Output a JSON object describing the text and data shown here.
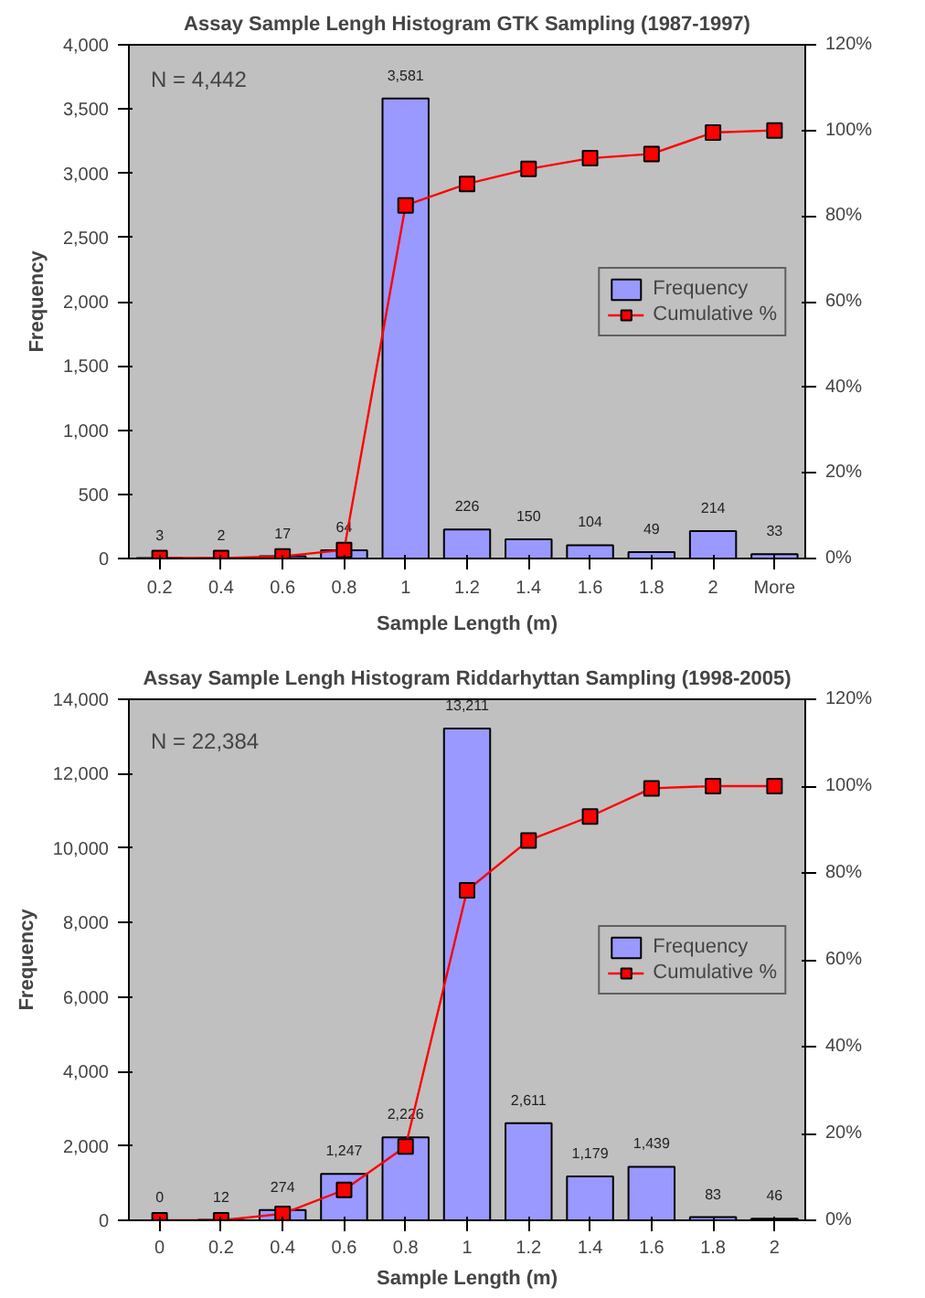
{
  "chart_data": [
    {
      "type": "bar",
      "title": "Assay Sample Lengh Histogram GTK Sampling (1987-1997)",
      "xlabel": "Sample Length (m)",
      "ylabel": "Frequency",
      "categories": [
        "0.2",
        "0.4",
        "0.6",
        "0.8",
        "1",
        "1.2",
        "1.4",
        "1.6",
        "1.8",
        "2",
        "More"
      ],
      "series": [
        {
          "name": "Frequency",
          "color": "#9999ff",
          "values": [
            3,
            2,
            17,
            64,
            3581,
            226,
            150,
            104,
            49,
            214,
            33
          ],
          "value_labels": [
            "3",
            "2",
            "17",
            "64",
            "3,581",
            "226",
            "150",
            "104",
            "49",
            "214",
            "33"
          ]
        },
        {
          "name": "Cumulative %",
          "type": "line",
          "axis": "y2",
          "color": "#ff0000",
          "marker": "square",
          "values": [
            0.1,
            0.1,
            0.5,
            2,
            82.5,
            87.5,
            91,
            93.5,
            94.5,
            99.5,
            100
          ]
        }
      ],
      "annotations": [
        "N = 4,442"
      ],
      "ylim": [
        0,
        4000
      ],
      "yticks": [
        {
          "value": 0,
          "label": "0"
        },
        {
          "value": 500,
          "label": "500"
        },
        {
          "value": 1000,
          "label": "1,000"
        },
        {
          "value": 1500,
          "label": "1,500"
        },
        {
          "value": 2000,
          "label": "2,000"
        },
        {
          "value": 2500,
          "label": "2,500"
        },
        {
          "value": 3000,
          "label": "3,000"
        },
        {
          "value": 3500,
          "label": "3,500"
        },
        {
          "value": 4000,
          "label": "4,000"
        }
      ],
      "y2lim": [
        0,
        120
      ],
      "y2ticks": [
        {
          "value": 0,
          "label": "0%"
        },
        {
          "value": 20,
          "label": "20%"
        },
        {
          "value": 40,
          "label": "40%"
        },
        {
          "value": 60,
          "label": "60%"
        },
        {
          "value": 80,
          "label": "80%"
        },
        {
          "value": 100,
          "label": "100%"
        },
        {
          "value": 120,
          "label": "120%"
        }
      ],
      "legend": "right",
      "grid": false
    },
    {
      "type": "bar",
      "title": "Assay Sample Lengh Histogram Riddarhyttan Sampling (1998-2005)",
      "xlabel": "Sample Length (m)",
      "ylabel": "Frequency",
      "categories": [
        "0",
        "0.2",
        "0.4",
        "0.6",
        "0.8",
        "1",
        "1.2",
        "1.4",
        "1.6",
        "1.8",
        "2"
      ],
      "series": [
        {
          "name": "Frequency",
          "color": "#9999ff",
          "values": [
            0,
            12,
            274,
            1247,
            2226,
            13211,
            2611,
            1179,
            1439,
            83,
            46
          ],
          "value_labels": [
            "0",
            "12",
            "274",
            "1,247",
            "2,226",
            "13,211",
            "2,611",
            "1,179",
            "1,439",
            "83",
            "46"
          ]
        },
        {
          "name": "Cumulative %",
          "type": "line",
          "axis": "y2",
          "color": "#ff0000",
          "marker": "square",
          "values": [
            0,
            0,
            1.5,
            7,
            17,
            76,
            87.5,
            93,
            99.5,
            100,
            100
          ]
        }
      ],
      "annotations": [
        "N = 22,384"
      ],
      "ylim": [
        0,
        14000
      ],
      "yticks": [
        {
          "value": 0,
          "label": "0"
        },
        {
          "value": 2000,
          "label": "2,000"
        },
        {
          "value": 4000,
          "label": "4,000"
        },
        {
          "value": 6000,
          "label": "6,000"
        },
        {
          "value": 8000,
          "label": "8,000"
        },
        {
          "value": 10000,
          "label": "10,000"
        },
        {
          "value": 12000,
          "label": "12,000"
        },
        {
          "value": 14000,
          "label": "14,000"
        }
      ],
      "y2lim": [
        0,
        120
      ],
      "y2ticks": [
        {
          "value": 0,
          "label": "0%"
        },
        {
          "value": 20,
          "label": "20%"
        },
        {
          "value": 40,
          "label": "40%"
        },
        {
          "value": 60,
          "label": "60%"
        },
        {
          "value": 80,
          "label": "80%"
        },
        {
          "value": 100,
          "label": "100%"
        },
        {
          "value": 120,
          "label": "120%"
        }
      ],
      "legend": "right",
      "grid": false
    }
  ]
}
